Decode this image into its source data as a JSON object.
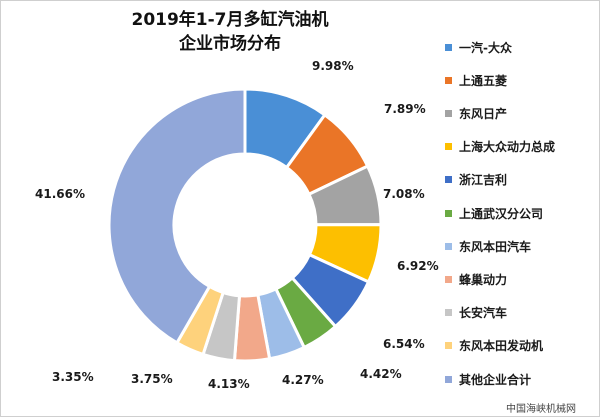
{
  "chart_data": {
    "type": "pie",
    "subtype": "donut",
    "title_line1": "2019年1-7月多缸汽油机",
    "title_line2": "企业市场分布",
    "legend_position": "right",
    "slices": [
      {
        "name": "一汽-大众",
        "value": 9.98,
        "label": "9.98%",
        "color": "#4a8fd6"
      },
      {
        "name": "上通五菱",
        "value": 7.89,
        "label": "7.89%",
        "color": "#ea7527"
      },
      {
        "name": "东风日产",
        "value": 7.08,
        "label": "7.08%",
        "color": "#a3a3a3"
      },
      {
        "name": "上海大众动力总成",
        "value": 6.92,
        "label": "6.92%",
        "color": "#fdbf00"
      },
      {
        "name": "浙江吉利",
        "value": 6.54,
        "label": "6.54%",
        "color": "#3f6fc7"
      },
      {
        "name": "上通武汉分公司",
        "value": 4.42,
        "label": "4.42%",
        "color": "#6aaa43"
      },
      {
        "name": "东风本田汽车",
        "value": 4.27,
        "label": "4.27%",
        "color": "#9dbde8"
      },
      {
        "name": "蜂巢动力",
        "value": 4.13,
        "label": "4.13%",
        "color": "#f2a88a"
      },
      {
        "name": "长安汽车",
        "value": 3.75,
        "label": "3.75%",
        "color": "#c6c6c6"
      },
      {
        "name": "东风本田发动机",
        "value": 3.35,
        "label": "3.35%",
        "color": "#fed27c"
      },
      {
        "name": "其他企业合计",
        "value": 41.66,
        "label": "41.66%",
        "color": "#91a7d9"
      }
    ]
  },
  "watermark": "中国海峡机械网"
}
